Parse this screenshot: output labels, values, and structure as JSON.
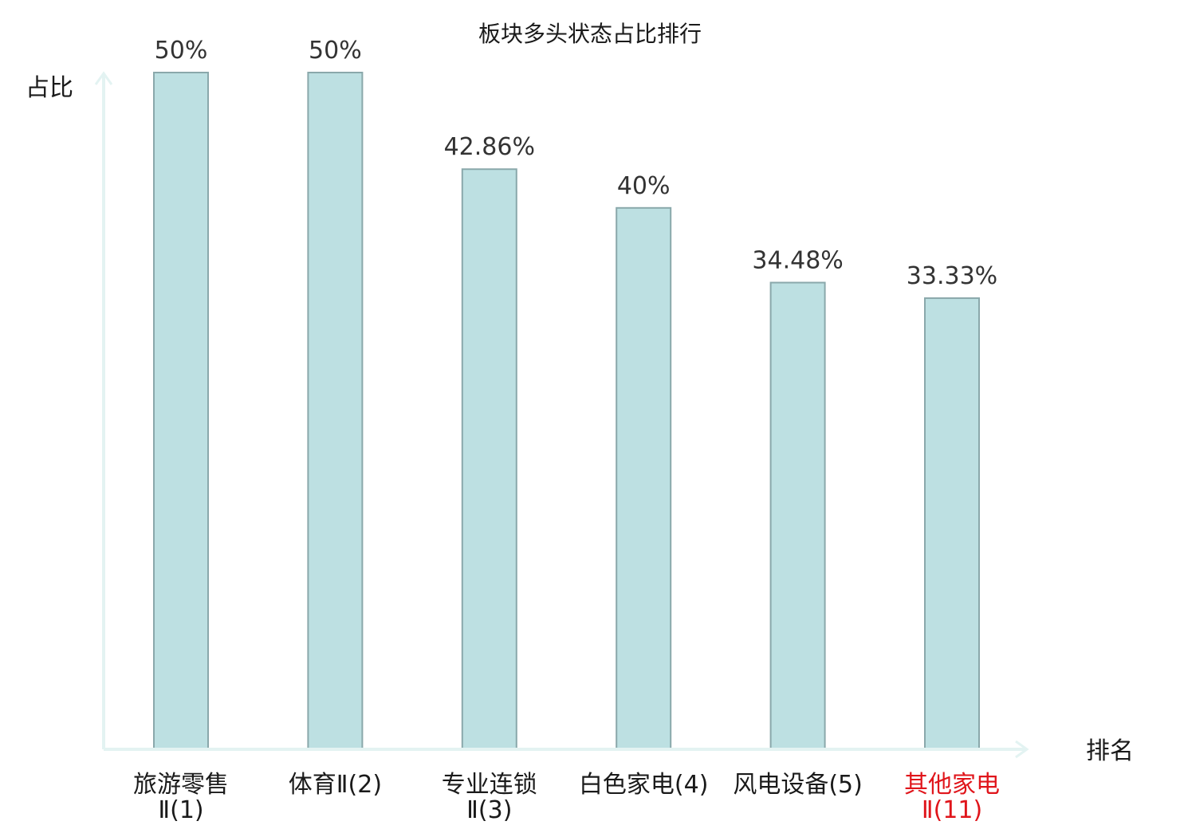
{
  "chart_data": {
    "type": "bar",
    "title": "板块多头状态占比排行",
    "ylabel": "占比",
    "xlabel": "排名",
    "categories": [
      [
        "旅游零售",
        "Ⅱ(1)"
      ],
      [
        "体育Ⅱ(2)"
      ],
      [
        "专业连锁",
        "Ⅱ(3)"
      ],
      [
        "白色家电(4)"
      ],
      [
        "风电设备(5)"
      ],
      [
        "其他家电",
        "Ⅱ(11)"
      ]
    ],
    "values": [
      50,
      50,
      42.86,
      40,
      34.48,
      33.33
    ],
    "value_labels": [
      "50%",
      "50%",
      "42.86%",
      "40%",
      "34.48%",
      "33.33%"
    ],
    "highlight_index": 5,
    "ylim": [
      0,
      50
    ],
    "colors": {
      "bar_fill": "#bde0e2",
      "bar_stroke": "#8aa8ab",
      "axis": "#e3f3f2",
      "label": "#1a1a1a",
      "highlight": "#e0151b"
    }
  }
}
